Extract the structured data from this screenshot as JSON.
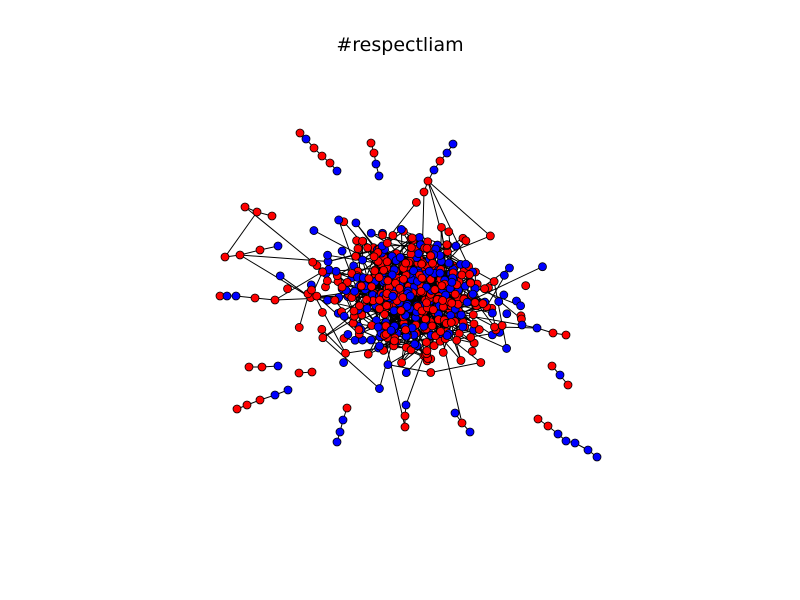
{
  "title": "#respectliam",
  "colors": {
    "background": "#ffffff",
    "edge": "#000000",
    "node_red": "#ff0000",
    "node_blue": "#0000ff",
    "node_outline": "#000000"
  },
  "graph": {
    "type": "network",
    "node_classes": [
      "red",
      "blue"
    ],
    "edges_visible": true
  }
}
